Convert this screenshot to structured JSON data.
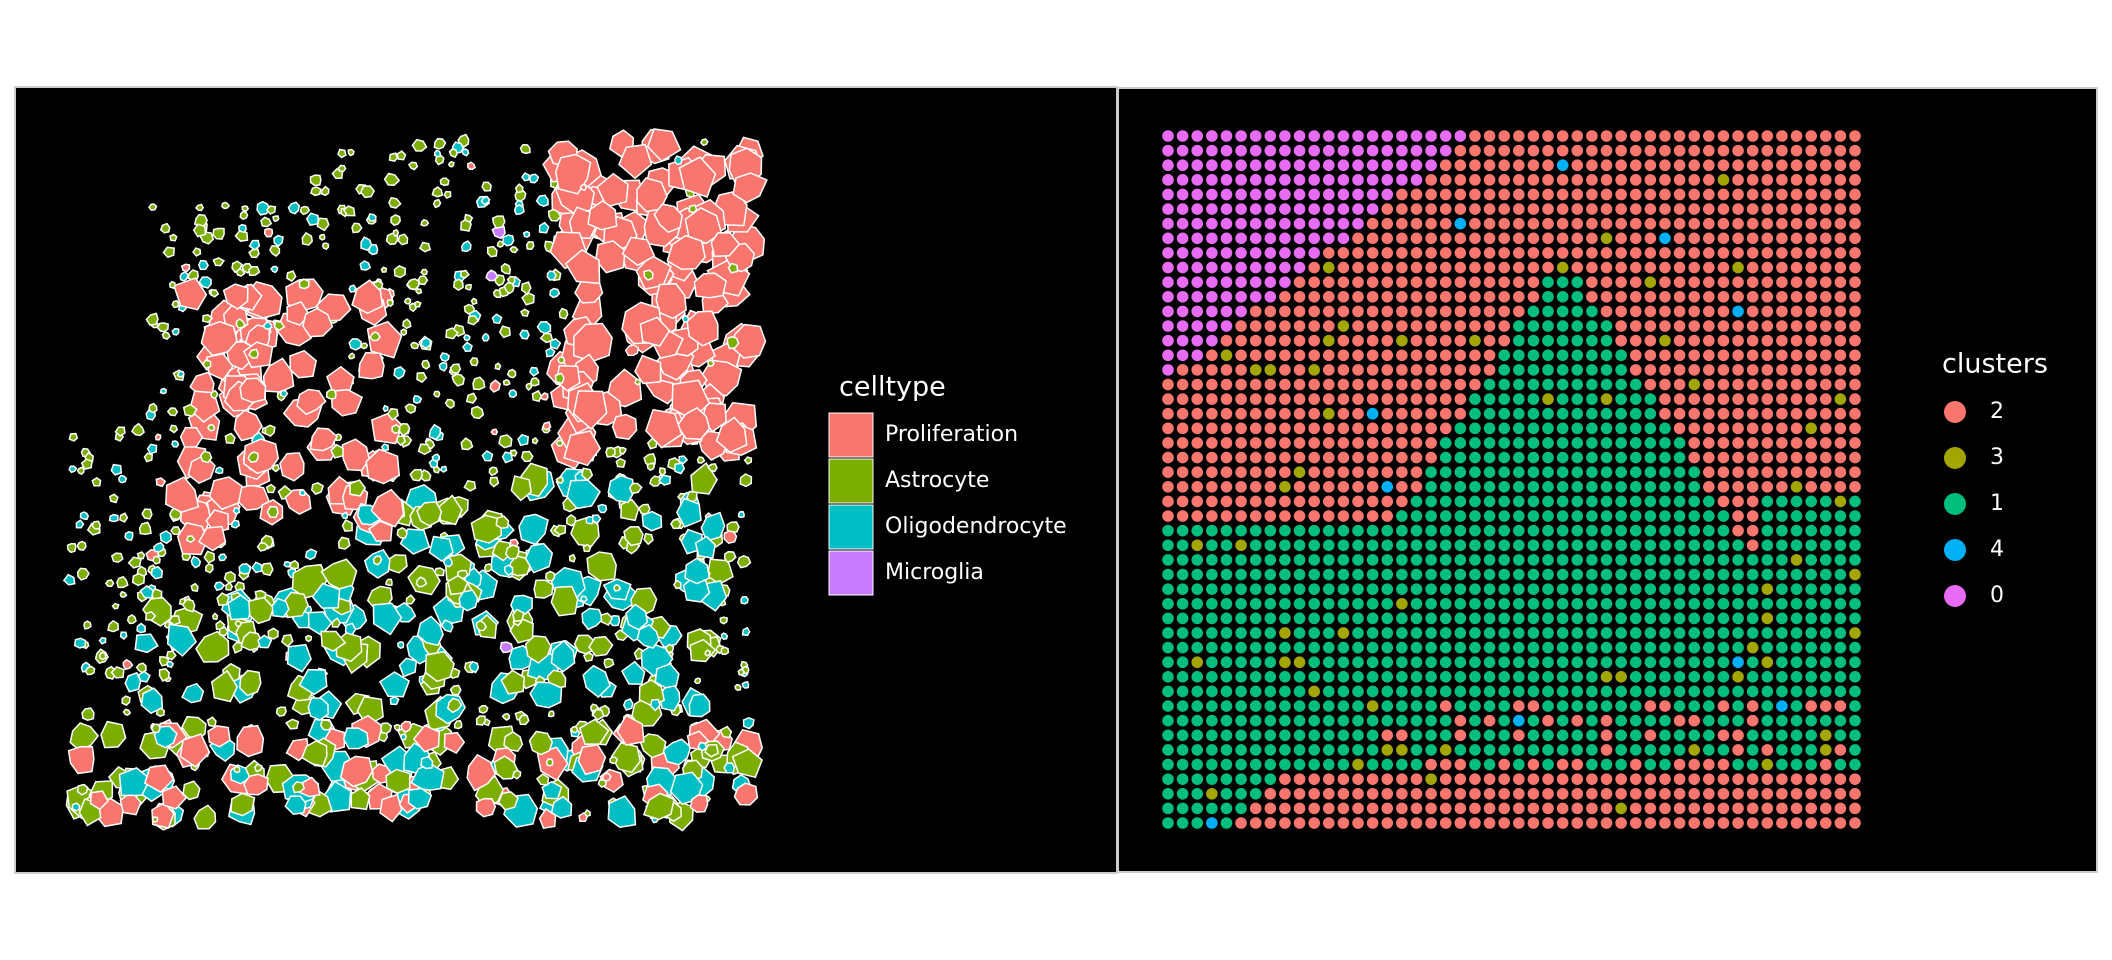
{
  "chart_data": [
    {
      "type": "spatial-cells",
      "legend_title": "celltype",
      "series": [
        {
          "name": "Proliferation",
          "color": "#F8766D"
        },
        {
          "name": "Astrocyte",
          "color": "#7CAE00"
        },
        {
          "name": "Oligodendrocyte",
          "color": "#00BFC4"
        },
        {
          "name": "Microglia",
          "color": "#C77CFF"
        }
      ]
    },
    {
      "type": "spot-grid",
      "legend_title": "clusters",
      "series": [
        {
          "name": "2",
          "color": "#F8766D"
        },
        {
          "name": "3",
          "color": "#A3A500"
        },
        {
          "name": "1",
          "color": "#00BF7D"
        },
        {
          "name": "4",
          "color": "#00B0F6"
        },
        {
          "name": "0",
          "color": "#E76BF3"
        }
      ]
    }
  ]
}
